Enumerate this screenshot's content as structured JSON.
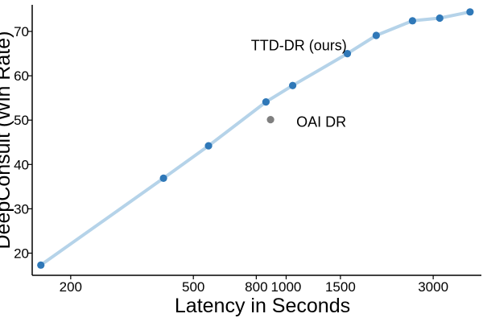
{
  "chart_data": {
    "type": "line",
    "title": "",
    "xlabel": "Latency in Seconds",
    "ylabel": "DeepConsult (Win Rate)",
    "x_scale": "log",
    "xlim": [
      150,
      4300
    ],
    "ylim": [
      15,
      76
    ],
    "x_ticks": [
      200,
      500,
      800,
      1000,
      1500,
      3000
    ],
    "x_tick_labels": [
      "200",
      "500",
      "800",
      "1000",
      "1500",
      "3000"
    ],
    "y_ticks": [
      20,
      30,
      40,
      50,
      60,
      70
    ],
    "y_tick_labels": [
      "20",
      "30",
      "40",
      "50",
      "60",
      "70"
    ],
    "grid": false,
    "legend": "none",
    "series": [
      {
        "name": "TTD-DR (ours)",
        "color": "#2f78b8",
        "line_color": "#b5d3e9",
        "points": [
          {
            "x": 160,
            "y": 17.3
          },
          {
            "x": 400,
            "y": 36.9
          },
          {
            "x": 560,
            "y": 44.2
          },
          {
            "x": 860,
            "y": 54.1
          },
          {
            "x": 1050,
            "y": 57.8
          },
          {
            "x": 1580,
            "y": 65.0
          },
          {
            "x": 1960,
            "y": 69.1
          },
          {
            "x": 2570,
            "y": 72.4
          },
          {
            "x": 3150,
            "y": 73.0
          },
          {
            "x": 3950,
            "y": 74.4
          }
        ]
      },
      {
        "name": "OAI DR",
        "color": "#7f7f7f",
        "points": [
          {
            "x": 890,
            "y": 50.1
          }
        ]
      }
    ],
    "annotations": [
      {
        "text": "TTD-DR (ours)",
        "x": 1100,
        "y": 66.8
      },
      {
        "text": "OAI DR",
        "x": 1300,
        "y": 49.6
      }
    ]
  }
}
